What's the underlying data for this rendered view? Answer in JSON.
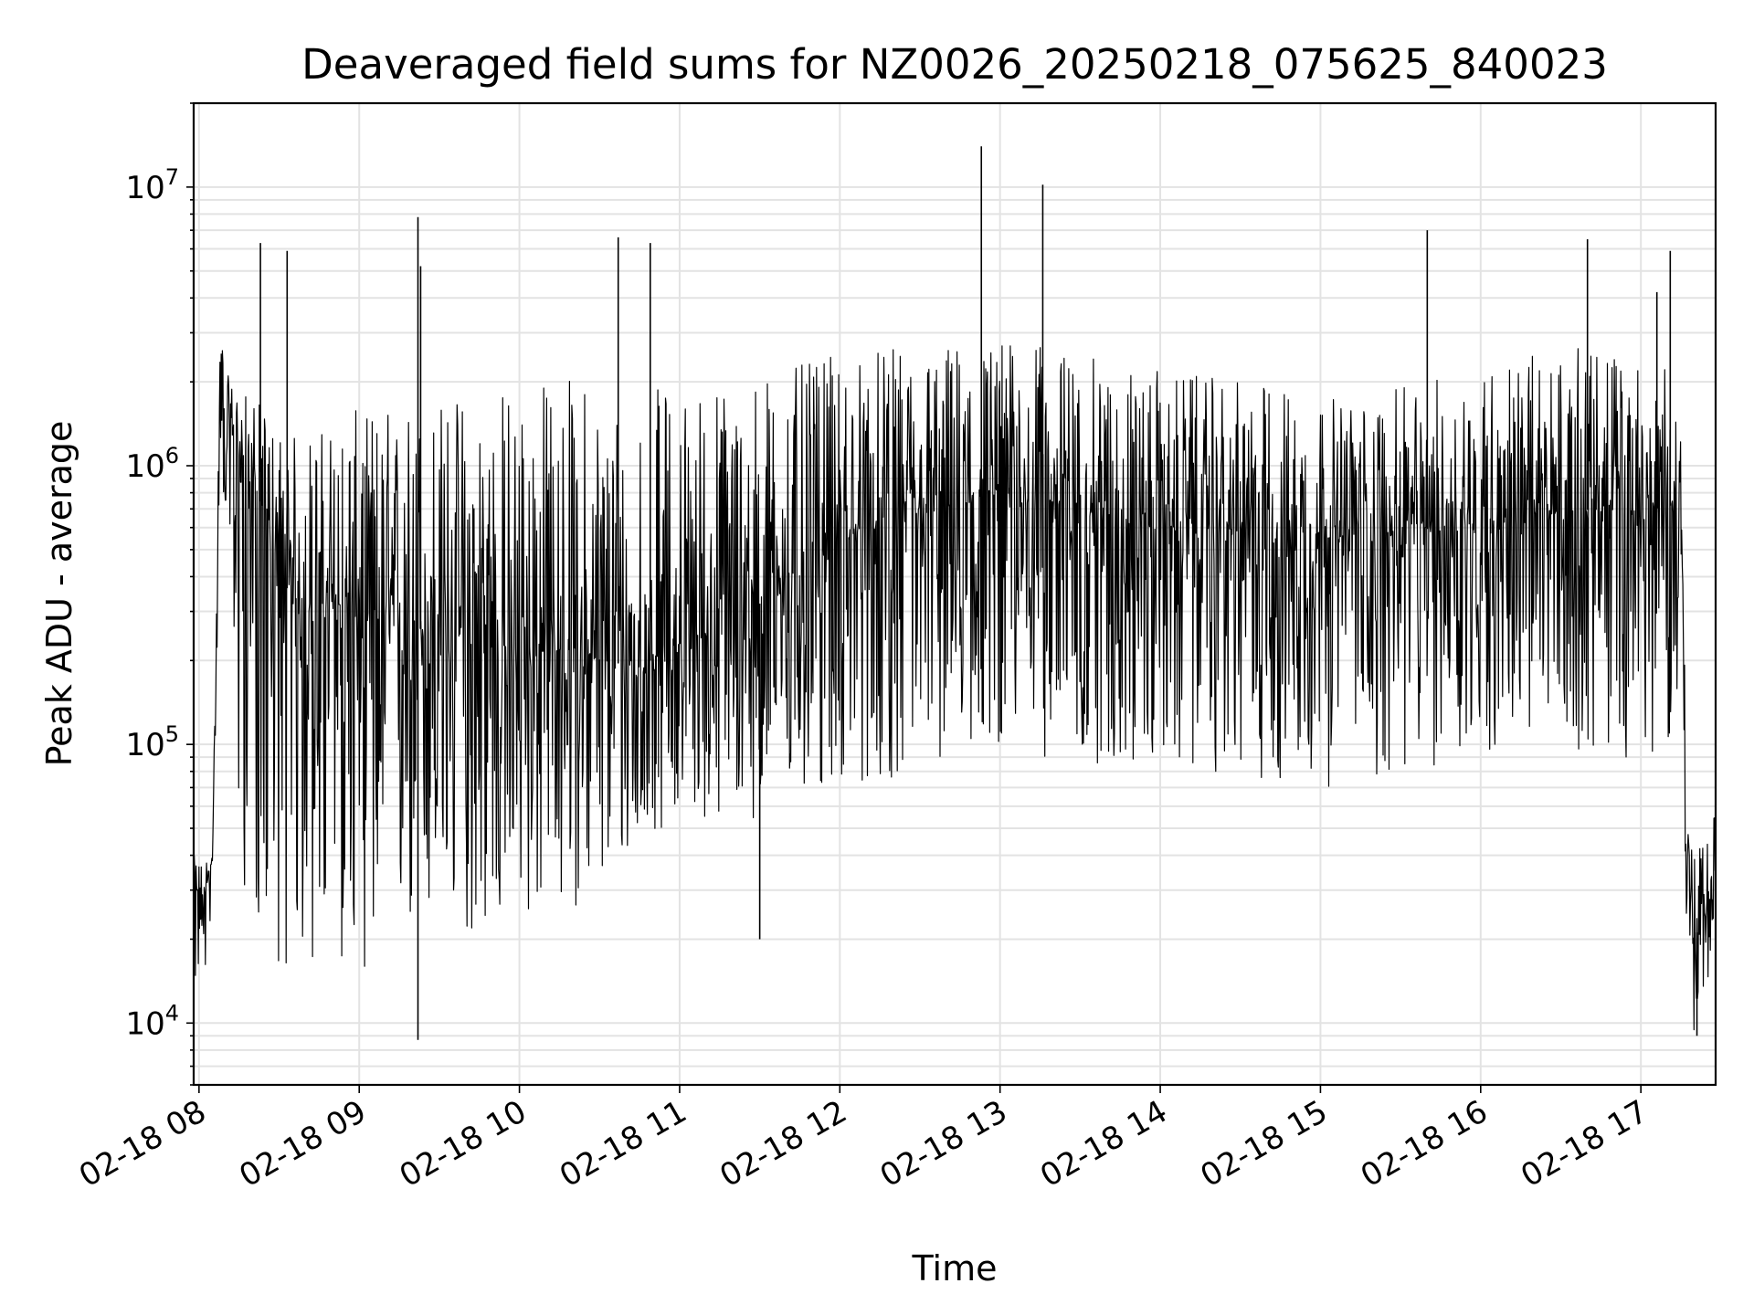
{
  "chart_data": {
    "type": "line",
    "title": "Deaveraged field sums for NZ0026_20250218_075625_840023",
    "xlabel": "Time",
    "ylabel": "Peak ADU - average",
    "yscale": "log",
    "ylim": [
      6000,
      20000000
    ],
    "xlim": [
      "2025-02-18 07:58",
      "2025-02-18 17:28"
    ],
    "grid": true,
    "line_color": "#000000",
    "x_ticks": [
      "02-18 08",
      "02-18 09",
      "02-18 10",
      "02-18 11",
      "02-18 12",
      "02-18 13",
      "02-18 14",
      "02-18 15",
      "02-18 16",
      "02-18 17"
    ],
    "y_ticks": [
      {
        "base": "10",
        "exp": "4",
        "value": 10000
      },
      {
        "base": "10",
        "exp": "5",
        "value": 100000
      },
      {
        "base": "10",
        "exp": "6",
        "value": 1000000
      },
      {
        "base": "10",
        "exp": "7",
        "value": 10000000
      }
    ],
    "series": [
      {
        "x": [
          "2025-02-18 07:58",
          "2025-02-18 08:02",
          "2025-02-18 08:05",
          "2025-02-18 08:06",
          "2025-02-18 08:07",
          "2025-02-18 08:08",
          "2025-02-18 08:10",
          "2025-02-18 08:12",
          "2025-02-18 08:15",
          "2025-02-18 08:18",
          "2025-02-18 08:22",
          "2025-02-18 08:26",
          "2025-02-18 08:30",
          "2025-02-18 08:36",
          "2025-02-18 08:45",
          "2025-02-18 08:52",
          "2025-02-18 09:00",
          "2025-02-18 09:15",
          "2025-02-18 09:30",
          "2025-02-18 09:45",
          "2025-02-18 10:00",
          "2025-02-18 10:15",
          "2025-02-18 10:30",
          "2025-02-18 10:45",
          "2025-02-18 11:00",
          "2025-02-18 11:15",
          "2025-02-18 11:30",
          "2025-02-18 11:45",
          "2025-02-18 12:00",
          "2025-02-18 12:15",
          "2025-02-18 12:30",
          "2025-02-18 12:45",
          "2025-02-18 13:00",
          "2025-02-18 13:15",
          "2025-02-18 13:30",
          "2025-02-18 13:45",
          "2025-02-18 14:00",
          "2025-02-18 14:15",
          "2025-02-18 14:30",
          "2025-02-18 14:45",
          "2025-02-18 15:00",
          "2025-02-18 15:15",
          "2025-02-18 15:30",
          "2025-02-18 15:45",
          "2025-02-18 16:00",
          "2025-02-18 16:15",
          "2025-02-18 16:30",
          "2025-02-18 16:45",
          "2025-02-18 17:00",
          "2025-02-18 17:10",
          "2025-02-18 17:15",
          "2025-02-18 17:16",
          "2025-02-18 17:17",
          "2025-02-18 17:20",
          "2025-02-18 17:24",
          "2025-02-18 17:28"
        ],
        "y": [
          30000,
          28000,
          40000,
          110000,
          600000,
          2500000,
          1600000,
          1300000,
          1100000,
          900000,
          800000,
          600000,
          400000,
          330000,
          300000,
          320000,
          280000,
          270000,
          250000,
          230000,
          210000,
          220000,
          200000,
          190000,
          230000,
          260000,
          320000,
          430000,
          550000,
          600000,
          650000,
          700000,
          800000,
          750000,
          700000,
          650000,
          600000,
          600000,
          580000,
          570000,
          550000,
          560000,
          580000,
          600000,
          620000,
          650000,
          680000,
          700000,
          650000,
          700000,
          800000,
          250000,
          35000,
          20000,
          25000,
          40000
        ],
        "low": [
          13000,
          13000,
          28000,
          70000,
          300000,
          1000000,
          600000,
          150000,
          40000,
          25000,
          20000,
          18000,
          16000,
          14000,
          15000,
          16000,
          15000,
          18000,
          20000,
          20000,
          22000,
          25000,
          28000,
          40000,
          60000,
          50000,
          55000,
          60000,
          70000,
          70000,
          80000,
          90000,
          100000,
          90000,
          85000,
          80000,
          80000,
          80000,
          75000,
          70000,
          70000,
          70000,
          75000,
          80000,
          90000,
          100000,
          100000,
          90000,
          90000,
          100000,
          150000,
          60000,
          15000,
          9000,
          12000,
          20000
        ],
        "high": [
          40000,
          38000,
          45000,
          150000,
          900000,
          3100000,
          2200000,
          2000000,
          1900000,
          1800000,
          1700000,
          1500000,
          1400000,
          1300000,
          1400000,
          1500000,
          1600000,
          1700000,
          1800000,
          2000000,
          2000000,
          2200000,
          2000000,
          1900000,
          2000000,
          2100000,
          2200000,
          2300000,
          2500000,
          2600000,
          2700000,
          2800000,
          2900000,
          2700000,
          2500000,
          2300000,
          2200000,
          2100000,
          2000000,
          2000000,
          1800000,
          1700000,
          1900000,
          2100000,
          2300000,
          2500000,
          2600000,
          2700000,
          2400000,
          2200000,
          1800000,
          800000,
          60000,
          40000,
          45000,
          60000
        ]
      }
    ],
    "spikes": [
      {
        "x": "2025-02-18 08:23",
        "y": 6300000
      },
      {
        "x": "2025-02-18 08:33",
        "y": 5900000
      },
      {
        "x": "2025-02-18 09:22",
        "y": 7800000
      },
      {
        "x": "2025-02-18 09:23",
        "y": 5200000
      },
      {
        "x": "2025-02-18 10:37",
        "y": 6600000
      },
      {
        "x": "2025-02-18 10:49",
        "y": 6300000
      },
      {
        "x": "2025-02-18 12:53",
        "y": 14000000
      },
      {
        "x": "2025-02-18 13:16",
        "y": 10200000
      },
      {
        "x": "2025-02-18 15:40",
        "y": 7000000
      },
      {
        "x": "2025-02-18 16:40",
        "y": 6500000
      },
      {
        "x": "2025-02-18 17:11",
        "y": 5900000
      },
      {
        "x": "2025-02-18 17:06",
        "y": 4200000
      },
      {
        "x": "2025-02-18 11:30",
        "y": 20000
      },
      {
        "x": "2025-02-18 09:22",
        "y": 8700
      },
      {
        "x": "2025-02-18 17:21",
        "y": 9000
      }
    ]
  }
}
